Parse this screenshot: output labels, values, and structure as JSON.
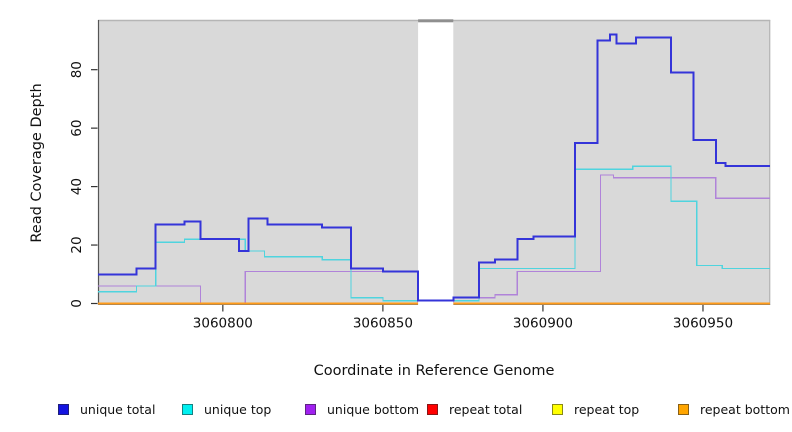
{
  "chart_data": {
    "type": "line",
    "subtype": "step-coverage",
    "title": "",
    "xlabel": "Coordinate in Reference Genome",
    "ylabel": "Read Coverage Depth",
    "xlim": [
      3060761,
      3060971
    ],
    "ylim": [
      0,
      97
    ],
    "x_ticks": [
      "3060800",
      "3060850",
      "3060900",
      "3060950"
    ],
    "x_tick_values": [
      3060800,
      3060850,
      3060900,
      3060950
    ],
    "y_ticks": [
      "0",
      "20",
      "40",
      "60",
      "80"
    ],
    "y_tick_values": [
      0,
      20,
      40,
      60,
      80
    ],
    "grid": "off",
    "plot_background": "#d9d9d9",
    "gap_region": {
      "start": 3060861,
      "end": 3060872,
      "fill": "#ffffff",
      "top_bar_color": "#8f8f8f"
    },
    "legend_position": "bottom",
    "series": [
      {
        "name": "repeat total",
        "line_color": "#e00000",
        "swatch_color": "#ff0000",
        "width": 1.3,
        "points": [
          [
            3060761,
            0
          ]
        ]
      },
      {
        "name": "repeat top",
        "line_color": "#f5f500",
        "swatch_color": "#ffff00",
        "width": 1.3,
        "points": [
          [
            3060761,
            0
          ]
        ]
      },
      {
        "name": "unique bottom",
        "line_color": "#b083d9",
        "swatch_color": "#a020f0",
        "width": 1.3,
        "points": [
          [
            3060761,
            6
          ],
          [
            3060793,
            0
          ],
          [
            3060807,
            11
          ],
          [
            3060861,
            0
          ],
          [
            3060872,
            2
          ],
          [
            3060885,
            3
          ],
          [
            3060892,
            11
          ],
          [
            3060918,
            44
          ],
          [
            3060922,
            43
          ],
          [
            3060954,
            36
          ]
        ]
      },
      {
        "name": "repeat bottom",
        "line_color": "#ff9b1a",
        "swatch_color": "#ffa500",
        "width": 1.8,
        "points": [
          [
            3060761,
            0
          ]
        ]
      },
      {
        "name": "unique top",
        "line_color": "#4fd4de",
        "swatch_color": "#00f0f0",
        "width": 1.3,
        "points": [
          [
            3060761,
            4
          ],
          [
            3060773,
            6
          ],
          [
            3060779,
            21
          ],
          [
            3060788,
            22
          ],
          [
            3060807,
            18
          ],
          [
            3060813,
            16
          ],
          [
            3060831,
            15
          ],
          [
            3060840,
            2
          ],
          [
            3060850,
            1
          ],
          [
            3060880,
            12
          ],
          [
            3060910,
            46
          ],
          [
            3060928,
            47
          ],
          [
            3060940,
            35
          ],
          [
            3060948,
            13
          ],
          [
            3060956,
            12
          ]
        ]
      },
      {
        "name": "unique total",
        "line_color": "#3434d9",
        "swatch_color": "#1414e0",
        "width": 2,
        "points": [
          [
            3060761,
            10
          ],
          [
            3060773,
            12
          ],
          [
            3060779,
            27
          ],
          [
            3060788,
            28
          ],
          [
            3060793,
            22
          ],
          [
            3060805,
            18
          ],
          [
            3060808,
            29
          ],
          [
            3060814,
            27
          ],
          [
            3060831,
            26
          ],
          [
            3060840,
            12
          ],
          [
            3060850,
            11
          ],
          [
            3060861,
            1
          ],
          [
            3060872,
            2
          ],
          [
            3060880,
            14
          ],
          [
            3060885,
            15
          ],
          [
            3060892,
            22
          ],
          [
            3060897,
            23
          ],
          [
            3060910,
            55
          ],
          [
            3060917,
            90
          ],
          [
            3060921,
            92
          ],
          [
            3060923,
            89
          ],
          [
            3060929,
            91
          ],
          [
            3060940,
            79
          ],
          [
            3060947,
            56
          ],
          [
            3060954,
            48
          ],
          [
            3060957,
            47
          ]
        ]
      }
    ],
    "legend": [
      "unique total",
      "unique top",
      "unique bottom",
      "repeat total",
      "repeat top",
      "repeat bottom"
    ]
  }
}
